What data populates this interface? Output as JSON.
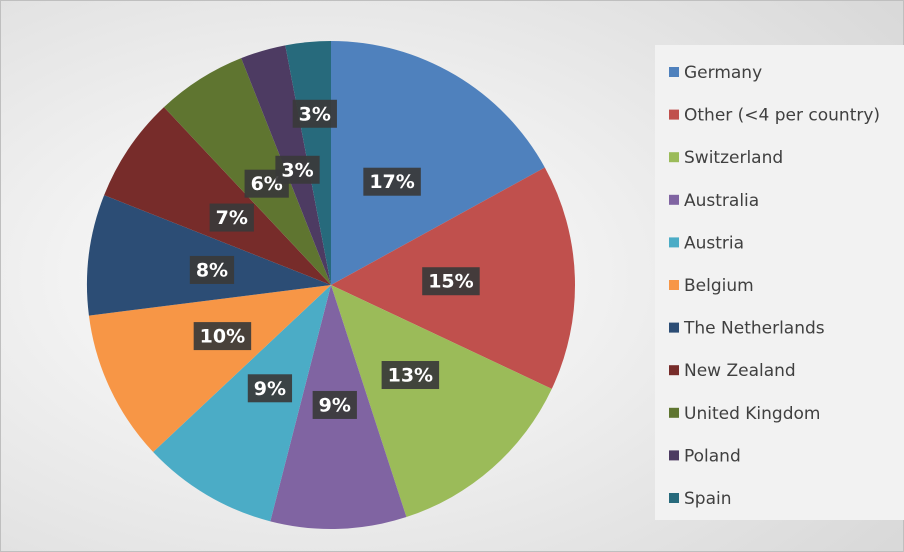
{
  "chart_data": {
    "type": "pie",
    "categories": [
      "Germany",
      "Other (<4 per country)",
      "Switzerland",
      "Australia",
      "Austria",
      "Belgium",
      "The Netherlands",
      "New Zealand",
      "United Kingdom",
      "Poland",
      "Spain"
    ],
    "values": [
      17,
      15,
      13,
      9,
      9,
      10,
      8,
      7,
      6,
      3,
      3
    ],
    "value_labels": [
      "17%",
      "15%",
      "13%",
      "9%",
      "9%",
      "10%",
      "8%",
      "7%",
      "6%",
      "3%",
      "3%"
    ],
    "colors": [
      "#4f81bd",
      "#c0504d",
      "#9bbb59",
      "#8064a2",
      "#4bacc6",
      "#f79646",
      "#2c4d75",
      "#772c2a",
      "#5f7530",
      "#4d3b62",
      "#276a7c"
    ],
    "legend": "right"
  }
}
